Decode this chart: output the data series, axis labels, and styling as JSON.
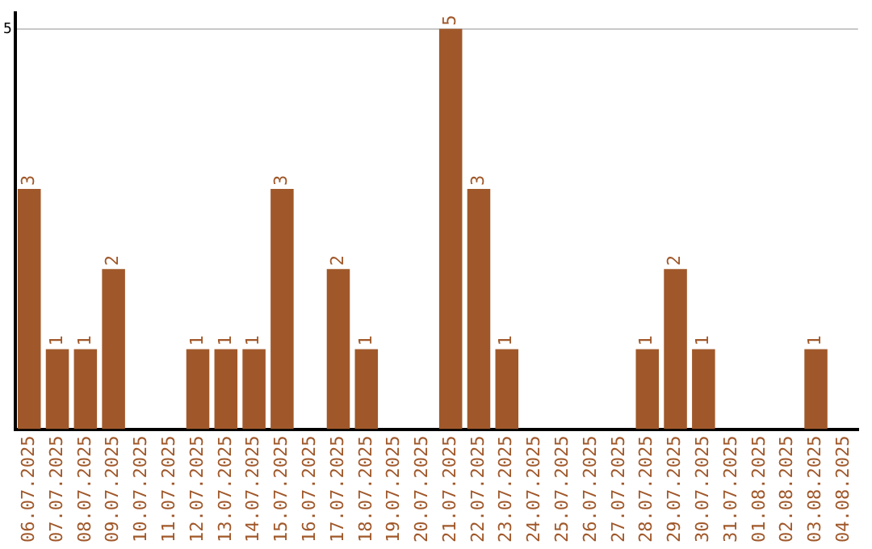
{
  "chart_data": {
    "type": "bar",
    "categories": [
      "06.07.2025",
      "07.07.2025",
      "08.07.2025",
      "09.07.2025",
      "10.07.2025",
      "11.07.2025",
      "12.07.2025",
      "13.07.2025",
      "14.07.2025",
      "15.07.2025",
      "16.07.2025",
      "17.07.2025",
      "18.07.2025",
      "19.07.2025",
      "20.07.2025",
      "21.07.2025",
      "22.07.2025",
      "23.07.2025",
      "24.07.2025",
      "25.07.2025",
      "26.07.2025",
      "27.07.2025",
      "28.07.2025",
      "29.07.2025",
      "30.07.2025",
      "31.07.2025",
      "01.08.2025",
      "02.08.2025",
      "03.08.2025",
      "04.08.2025"
    ],
    "values": [
      3,
      1,
      1,
      2,
      0,
      0,
      1,
      1,
      1,
      3,
      0,
      2,
      1,
      0,
      0,
      5,
      3,
      1,
      0,
      0,
      0,
      0,
      1,
      2,
      1,
      0,
      0,
      0,
      1,
      0
    ],
    "value_labels": [
      "3",
      "1",
      "1",
      "2",
      null,
      null,
      "1",
      "1",
      "1",
      "3",
      null,
      "2",
      "1",
      null,
      null,
      "5",
      "3",
      "1",
      null,
      null,
      null,
      null,
      "1",
      "2",
      "1",
      null,
      null,
      null,
      "1",
      null
    ],
    "color": "#a0582a",
    "ylim": [
      0,
      5.2
    ],
    "yticks": [
      5
    ],
    "grid": "y",
    "legend": false
  }
}
